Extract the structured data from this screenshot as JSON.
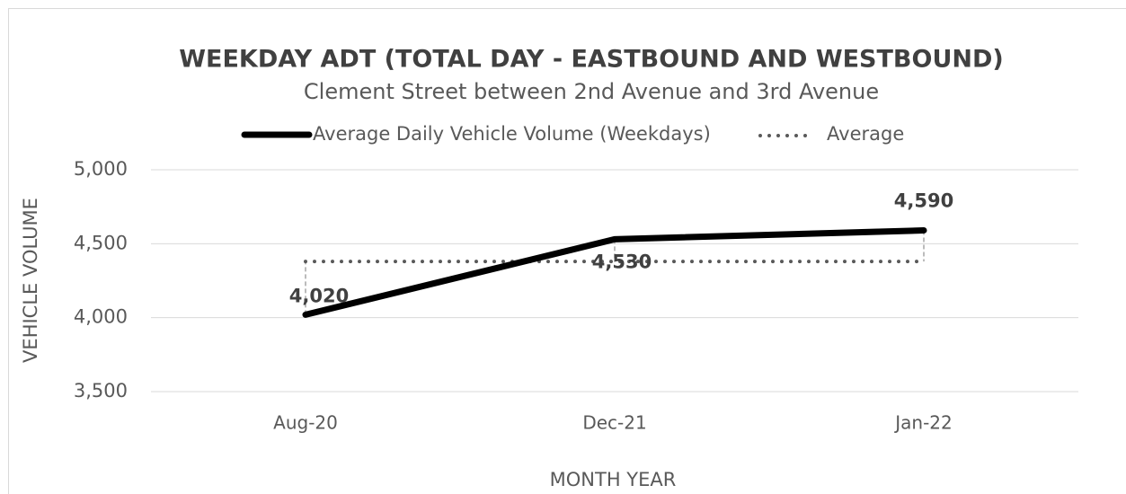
{
  "chart_data": {
    "type": "line",
    "title": "WEEKDAY ADT (TOTAL DAY - EASTBOUND AND WESTBOUND)",
    "subtitle": "Clement Street between 2nd Avenue and 3rd Avenue",
    "x_label": "MONTH YEAR",
    "y_label": "VEHICLE VOLUME",
    "categories": [
      "Aug-20",
      "Dec-21",
      "Jan-22"
    ],
    "series": [
      {
        "name": "Average Daily Vehicle Volume (Weekdays)",
        "color": "#000000",
        "style": "solid",
        "values": [
          4020,
          4530,
          4590
        ],
        "value_labels": [
          "4,020",
          "4,530",
          "4,590"
        ]
      },
      {
        "name": "Average",
        "color": "#595959",
        "style": "dotted",
        "values": [
          4380,
          4380,
          4380
        ]
      }
    ],
    "ylim": [
      3500,
      5000
    ],
    "yticks": [
      {
        "value": 3500,
        "label": "3,500"
      },
      {
        "value": 4000,
        "label": "4,000"
      },
      {
        "value": 4500,
        "label": "4,500"
      },
      {
        "value": 5000,
        "label": "5,000"
      }
    ],
    "grid": true,
    "legend": "top"
  }
}
